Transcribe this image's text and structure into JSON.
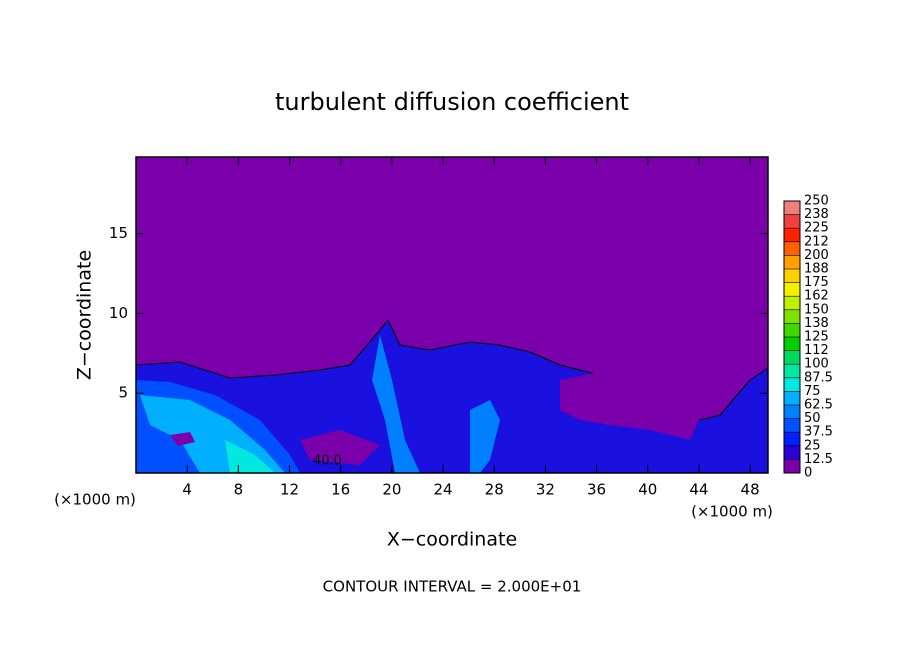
{
  "chart_data": {
    "type": "contour",
    "title": "turbulent diffusion coefficient",
    "x_label": "X−coordinate",
    "y_label": "Z−coordinate",
    "x_unit_label": "(×1000 m)",
    "footer": "CONTOUR INTERVAL = 2.000E+01",
    "contour_label": "40.0",
    "xlim": [
      0,
      49.4
    ],
    "xticks": [
      4,
      8,
      12,
      16,
      20,
      24,
      28,
      32,
      36,
      40,
      44,
      48
    ],
    "ylim": [
      0,
      19.8
    ],
    "yticks": [
      5,
      10,
      15
    ],
    "colorbar": {
      "ticks": [
        0,
        12.5,
        25,
        37.5,
        50,
        62.5,
        75,
        87.5,
        100,
        {
          "value": 112.5,
          "label": "112"
        },
        125,
        {
          "value": 137.5,
          "label": "138"
        },
        150,
        {
          "value": 162.5,
          "label": "162"
        },
        175,
        {
          "value": 187.5,
          "label": "188"
        },
        200,
        {
          "value": 212.5,
          "label": "212"
        },
        225,
        {
          "value": 237.5,
          "label": "238"
        },
        250
      ],
      "colors": [
        "#7b00ab",
        "#2a00d8",
        "#0020ff",
        "#0050ff",
        "#0080ff",
        "#00b0ff",
        "#00e8e0",
        "#00e8a0",
        "#00d860",
        "#00d000",
        "#40d800",
        "#80e000",
        "#c0f000",
        "#f0f000",
        "#ffd000",
        "#ffa000",
        "#ff6000",
        "#ff2000",
        "#f04040",
        "#f08080"
      ]
    }
  }
}
